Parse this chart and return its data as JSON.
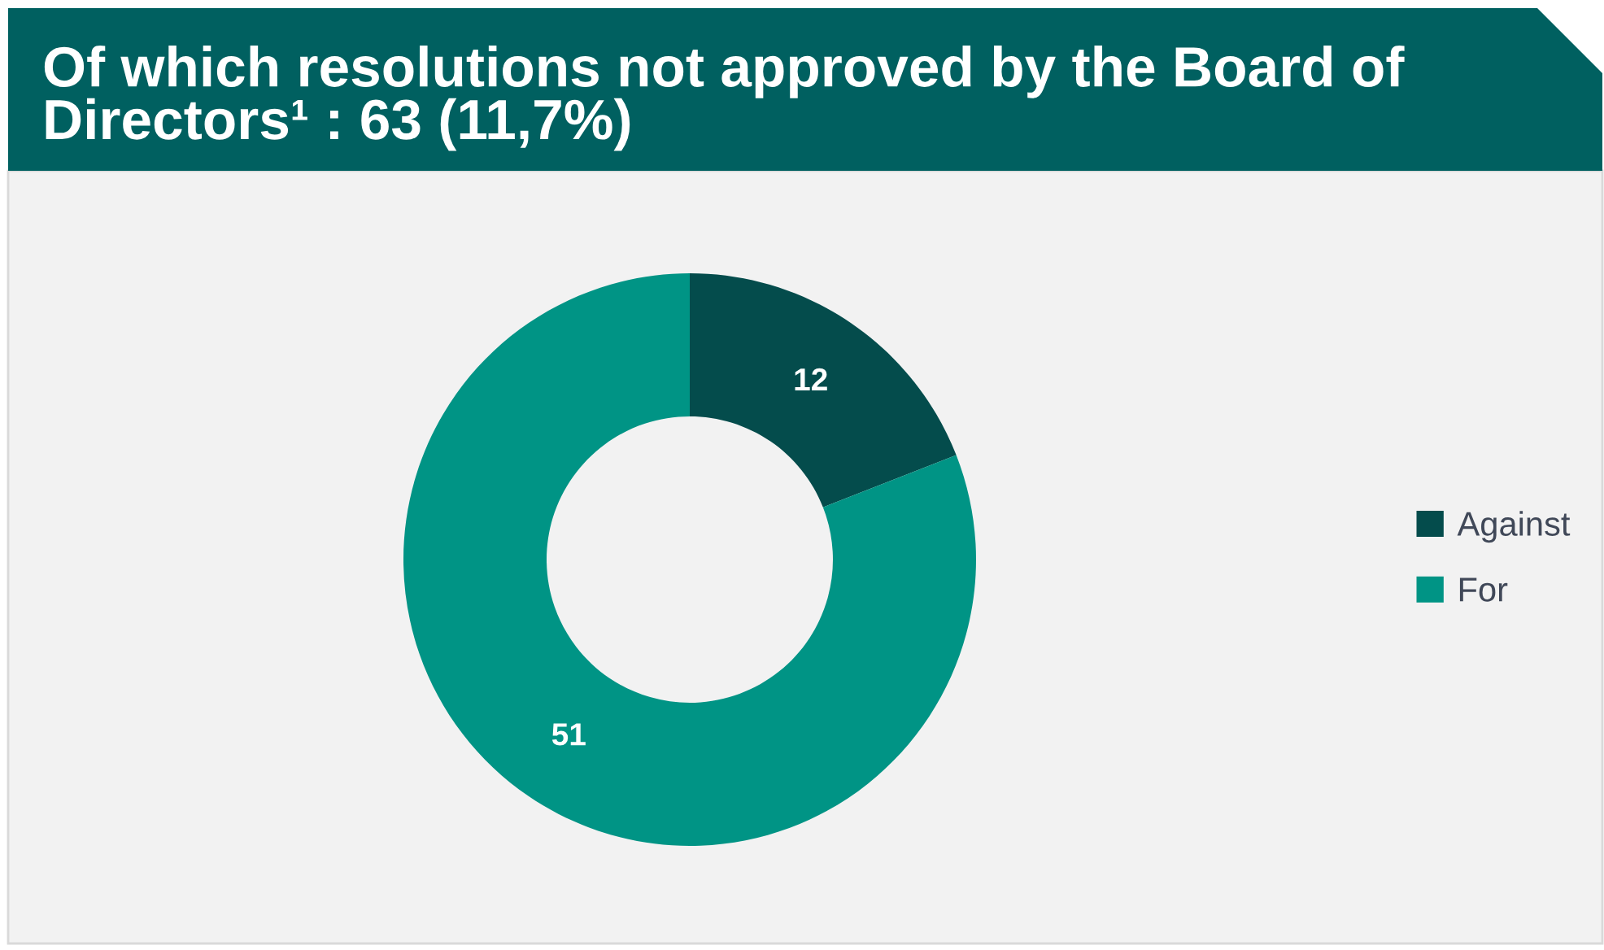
{
  "chart_data": {
    "type": "donut",
    "title": "Of which resolutions not approved by the Board of Directors¹ : 63 (11,7%)",
    "categories": [
      "Against",
      "For"
    ],
    "values": [
      12,
      51
    ],
    "colors": [
      "#044c4c",
      "#009485"
    ],
    "data_labels": true,
    "legend": "right"
  }
}
